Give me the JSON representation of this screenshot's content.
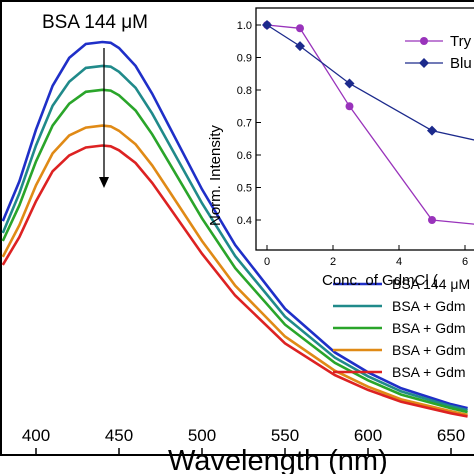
{
  "chart_data": [
    {
      "type": "line",
      "title": "",
      "annotation": "BSA 144 μM",
      "xlabel": "Wavelength (nm)",
      "ylabel": "",
      "xlim": [
        380,
        660
      ],
      "x_ticks": [
        "400",
        "450",
        "500",
        "550",
        "600",
        "650"
      ],
      "legend_position": "bottom-right",
      "series": [
        {
          "name": "BSA 144 μM",
          "color": "#1f2fc8",
          "x": [
            380,
            390,
            400,
            410,
            420,
            430,
            440,
            445,
            450,
            460,
            470,
            480,
            500,
            520,
            550,
            580,
            600,
            620,
            650,
            660
          ],
          "y": [
            0.55,
            0.65,
            0.78,
            0.89,
            0.96,
            0.995,
            1.0,
            0.998,
            0.985,
            0.94,
            0.87,
            0.79,
            0.63,
            0.49,
            0.33,
            0.22,
            0.17,
            0.13,
            0.09,
            0.08
          ]
        },
        {
          "name": "BSA + Gdm",
          "color": "#208a8a",
          "x": [
            380,
            390,
            400,
            410,
            420,
            430,
            440,
            445,
            450,
            460,
            470,
            480,
            500,
            520,
            550,
            580,
            600,
            620,
            650,
            660
          ],
          "y": [
            0.52,
            0.62,
            0.74,
            0.84,
            0.9,
            0.935,
            0.94,
            0.938,
            0.925,
            0.885,
            0.82,
            0.745,
            0.595,
            0.462,
            0.31,
            0.207,
            0.16,
            0.122,
            0.085,
            0.075
          ]
        },
        {
          "name": "BSA + Gdm",
          "color": "#2aa52a",
          "x": [
            380,
            390,
            400,
            410,
            420,
            430,
            440,
            445,
            450,
            460,
            470,
            480,
            500,
            520,
            550,
            580,
            600,
            620,
            650,
            660
          ],
          "y": [
            0.5,
            0.59,
            0.7,
            0.79,
            0.845,
            0.875,
            0.88,
            0.878,
            0.866,
            0.828,
            0.768,
            0.698,
            0.557,
            0.432,
            0.29,
            0.194,
            0.15,
            0.114,
            0.08,
            0.07
          ]
        },
        {
          "name": "BSA + Gdm",
          "color": "#e08a16",
          "x": [
            380,
            390,
            400,
            410,
            420,
            430,
            440,
            445,
            450,
            460,
            470,
            480,
            500,
            520,
            550,
            580,
            600,
            620,
            650,
            660
          ],
          "y": [
            0.46,
            0.54,
            0.64,
            0.72,
            0.765,
            0.785,
            0.79,
            0.788,
            0.777,
            0.743,
            0.69,
            0.627,
            0.5,
            0.388,
            0.26,
            0.174,
            0.134,
            0.102,
            0.072,
            0.063
          ]
        },
        {
          "name": "BSA + Gdm",
          "color": "#dd2222",
          "x": [
            380,
            390,
            400,
            410,
            420,
            430,
            440,
            445,
            450,
            460,
            470,
            480,
            500,
            520,
            550,
            580,
            600,
            620,
            650,
            660
          ],
          "y": [
            0.44,
            0.51,
            0.6,
            0.675,
            0.715,
            0.735,
            0.74,
            0.738,
            0.728,
            0.696,
            0.646,
            0.587,
            0.468,
            0.363,
            0.243,
            0.163,
            0.126,
            0.096,
            0.067,
            0.059
          ]
        }
      ]
    },
    {
      "type": "line",
      "title": "",
      "xlabel": "Conc. of GdmCl (",
      "ylabel": "Norm. Intensity",
      "xlim": [
        -0.5,
        7.0
      ],
      "ylim": [
        0.3,
        1.05
      ],
      "x_ticks": [
        "0",
        "2",
        "4",
        "6"
      ],
      "y_ticks": [
        "0.4",
        "0.5",
        "0.6",
        "0.7",
        "0.8",
        "0.9",
        "1.0"
      ],
      "legend_position": "top-right",
      "series": [
        {
          "name": "Try",
          "color": "#9933bb",
          "marker": "circle",
          "x": [
            0,
            1,
            2.5,
            5,
            7
          ],
          "y": [
            1.0,
            0.99,
            0.75,
            0.4,
            0.38
          ]
        },
        {
          "name": "Blu",
          "color": "#1c2a8c",
          "marker": "diamond",
          "x": [
            0,
            1,
            2.5,
            5,
            7
          ],
          "y": [
            1.0,
            0.935,
            0.82,
            0.675,
            0.63
          ]
        }
      ]
    }
  ]
}
